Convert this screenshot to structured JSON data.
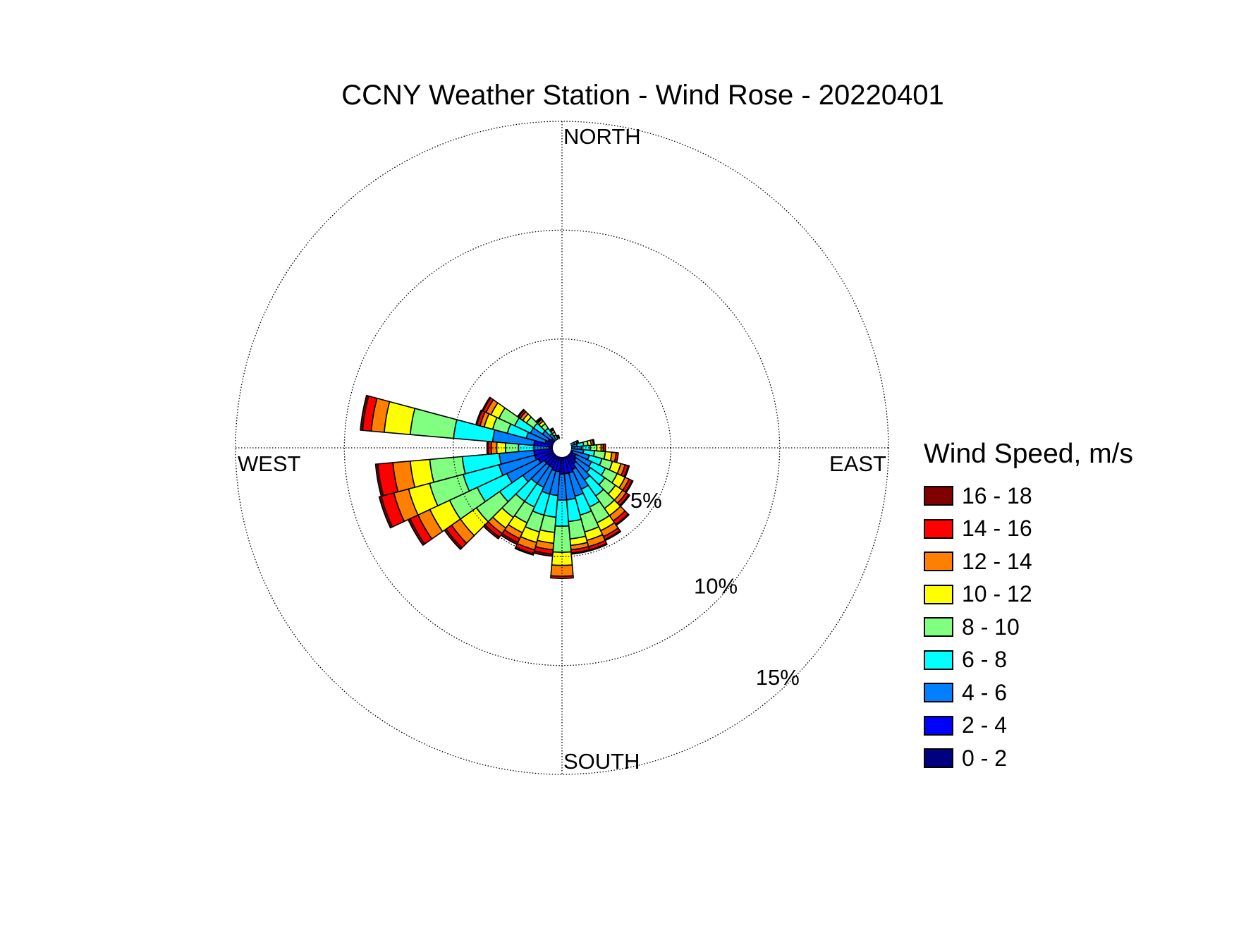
{
  "chart_data": {
    "type": "wind-rose",
    "title": "CCNY Weather Station - Wind Rose - 20220401",
    "directions": {
      "north": "NORTH",
      "south": "SOUTH",
      "east": "EAST",
      "west": "WEST"
    },
    "rings": [
      {
        "value": 5,
        "label": "5%"
      },
      {
        "value": 10,
        "label": "10%"
      },
      {
        "value": 15,
        "label": "15%"
      }
    ],
    "rmax": 15,
    "grid": true,
    "legend": {
      "title": "Wind Speed, m/s",
      "position": "right",
      "bins": [
        {
          "label": "16 - 18",
          "color": "#800000"
        },
        {
          "label": "14 - 16",
          "color": "#ff0000"
        },
        {
          "label": "12 - 14",
          "color": "#ff8000"
        },
        {
          "label": "10 - 12",
          "color": "#ffff00"
        },
        {
          "label": "8 - 10",
          "color": "#80ff80"
        },
        {
          "label": "6 - 8",
          "color": "#00ffff"
        },
        {
          "label": "4 - 6",
          "color": "#0080ff"
        },
        {
          "label": "2 - 4",
          "color": "#0000ff"
        },
        {
          "label": "0 - 2",
          "color": "#000080"
        }
      ]
    },
    "sector_width_deg": 10,
    "speed_bins_order": [
      "0 - 2",
      "2 - 4",
      "4 - 6",
      "6 - 8",
      "8 - 10",
      "10 - 12",
      "12 - 14",
      "14 - 16",
      "16 - 18"
    ],
    "sectors": [
      {
        "direction": 90,
        "cumulative": [
          0.1,
          0.3,
          0.9,
          1.3,
          1.6,
          1.8,
          1.9,
          2.0,
          2.0
        ]
      },
      {
        "direction": 100,
        "cumulative": [
          0.1,
          0.4,
          1.0,
          1.5,
          2.0,
          2.3,
          2.5,
          2.6,
          2.6
        ]
      },
      {
        "direction": 110,
        "cumulative": [
          0.1,
          0.5,
          1.3,
          1.9,
          2.4,
          2.8,
          3.0,
          3.15,
          3.2
        ]
      },
      {
        "direction": 120,
        "cumulative": [
          0.1,
          0.7,
          1.5,
          2.2,
          2.8,
          3.2,
          3.4,
          3.55,
          3.6
        ]
      },
      {
        "direction": 130,
        "cumulative": [
          0.1,
          0.8,
          1.6,
          2.4,
          3.0,
          3.4,
          3.6,
          3.75,
          3.8
        ]
      },
      {
        "direction": 140,
        "cumulative": [
          0.1,
          0.9,
          1.8,
          2.7,
          3.4,
          3.8,
          4.1,
          4.3,
          4.35
        ]
      },
      {
        "direction": 150,
        "cumulative": [
          0.1,
          1.1,
          2.1,
          3.0,
          3.8,
          4.2,
          4.5,
          4.65,
          4.7
        ]
      },
      {
        "direction": 160,
        "cumulative": [
          0.1,
          1.2,
          2.3,
          3.2,
          4.0,
          4.4,
          4.7,
          4.85,
          4.9
        ]
      },
      {
        "direction": 170,
        "cumulative": [
          0.1,
          1.2,
          2.4,
          3.4,
          4.2,
          4.5,
          4.7,
          4.85,
          4.9
        ]
      },
      {
        "direction": 180,
        "cumulative": [
          0.1,
          1.2,
          2.4,
          3.6,
          4.8,
          5.4,
          5.9,
          6.0,
          6.0
        ]
      },
      {
        "direction": 190,
        "cumulative": [
          0.1,
          1.1,
          2.2,
          3.2,
          3.9,
          4.4,
          4.7,
          4.9,
          5.0
        ]
      },
      {
        "direction": 200,
        "cumulative": [
          0.1,
          1.1,
          2.2,
          3.2,
          4.0,
          4.5,
          4.85,
          5.05,
          5.1
        ]
      },
      {
        "direction": 210,
        "cumulative": [
          0.1,
          1.0,
          2.0,
          3.0,
          3.8,
          4.3,
          4.6,
          4.8,
          4.9
        ]
      },
      {
        "direction": 220,
        "cumulative": [
          0.1,
          1.0,
          2.0,
          3.0,
          3.9,
          4.5,
          4.8,
          5.0,
          5.1
        ]
      },
      {
        "direction": 230,
        "cumulative": [
          0.1,
          1.0,
          2.2,
          3.5,
          4.8,
          5.7,
          6.2,
          6.5,
          6.6
        ]
      },
      {
        "direction": 240,
        "cumulative": [
          0.1,
          1.2,
          2.8,
          4.3,
          5.7,
          6.7,
          7.3,
          7.7,
          7.8
        ]
      },
      {
        "direction": 250,
        "cumulative": [
          0.1,
          1.3,
          3.0,
          4.7,
          6.3,
          7.3,
          8.0,
          8.6,
          8.7
        ]
      },
      {
        "direction": 260,
        "cumulative": [
          0.1,
          1.3,
          2.9,
          4.6,
          6.1,
          7.0,
          7.8,
          8.5,
          8.6
        ]
      },
      {
        "direction": 270,
        "cumulative": [
          0.1,
          0.6,
          1.3,
          2.0,
          2.6,
          3.0,
          3.25,
          3.4,
          3.45
        ]
      },
      {
        "direction": 280,
        "cumulative": [
          0.1,
          1.3,
          3.2,
          5.0,
          7.0,
          8.2,
          8.8,
          9.2,
          9.3
        ]
      },
      {
        "direction": 290,
        "cumulative": [
          0.1,
          0.8,
          1.7,
          2.6,
          3.3,
          3.7,
          3.9,
          4.05,
          4.1
        ]
      },
      {
        "direction": 300,
        "cumulative": [
          0.1,
          0.7,
          1.6,
          2.4,
          3.2,
          3.6,
          3.85,
          4.0,
          4.05
        ]
      },
      {
        "direction": 310,
        "cumulative": [
          0.1,
          0.6,
          1.1,
          1.6,
          2.0,
          2.2,
          2.35,
          2.45,
          2.5
        ]
      },
      {
        "direction": 320,
        "cumulative": [
          0.1,
          0.4,
          0.8,
          1.1,
          1.35,
          1.5,
          1.6,
          1.65,
          1.7
        ]
      },
      {
        "direction": 330,
        "cumulative": [
          0.1,
          0.25,
          0.45,
          0.65,
          0.8,
          0.9,
          0.95,
          1.0,
          1.0
        ]
      },
      {
        "direction": 340,
        "cumulative": [
          0.1,
          0.2,
          0.3,
          0.4,
          0.5,
          0.55,
          0.6,
          0.6,
          0.6
        ]
      },
      {
        "direction": 350,
        "cumulative": [
          0.1,
          0.15,
          0.2,
          0.25,
          0.3,
          0.3,
          0.3,
          0.3,
          0.3
        ]
      },
      {
        "direction": 0,
        "cumulative": [
          0.1,
          0.15,
          0.2,
          0.2,
          0.2,
          0.2,
          0.2,
          0.2,
          0.2
        ]
      },
      {
        "direction": 10,
        "cumulative": [
          0.1,
          0.15,
          0.2,
          0.2,
          0.2,
          0.2,
          0.2,
          0.2,
          0.2
        ]
      },
      {
        "direction": 20,
        "cumulative": [
          0.1,
          0.15,
          0.2,
          0.2,
          0.2,
          0.2,
          0.2,
          0.2,
          0.2
        ]
      },
      {
        "direction": 30,
        "cumulative": [
          0.1,
          0.15,
          0.2,
          0.2,
          0.2,
          0.2,
          0.2,
          0.2,
          0.2
        ]
      },
      {
        "direction": 40,
        "cumulative": [
          0.1,
          0.15,
          0.2,
          0.2,
          0.2,
          0.2,
          0.2,
          0.2,
          0.2
        ]
      },
      {
        "direction": 50,
        "cumulative": [
          0.1,
          0.15,
          0.2,
          0.2,
          0.2,
          0.2,
          0.2,
          0.2,
          0.2
        ]
      },
      {
        "direction": 60,
        "cumulative": [
          0.1,
          0.15,
          0.2,
          0.25,
          0.3,
          0.3,
          0.3,
          0.3,
          0.3
        ]
      },
      {
        "direction": 70,
        "cumulative": [
          0.1,
          0.2,
          0.4,
          0.6,
          0.7,
          0.75,
          0.8,
          0.8,
          0.8
        ]
      },
      {
        "direction": 80,
        "cumulative": [
          0.1,
          0.3,
          0.7,
          1.0,
          1.2,
          1.35,
          1.45,
          1.5,
          1.5
        ]
      }
    ]
  }
}
